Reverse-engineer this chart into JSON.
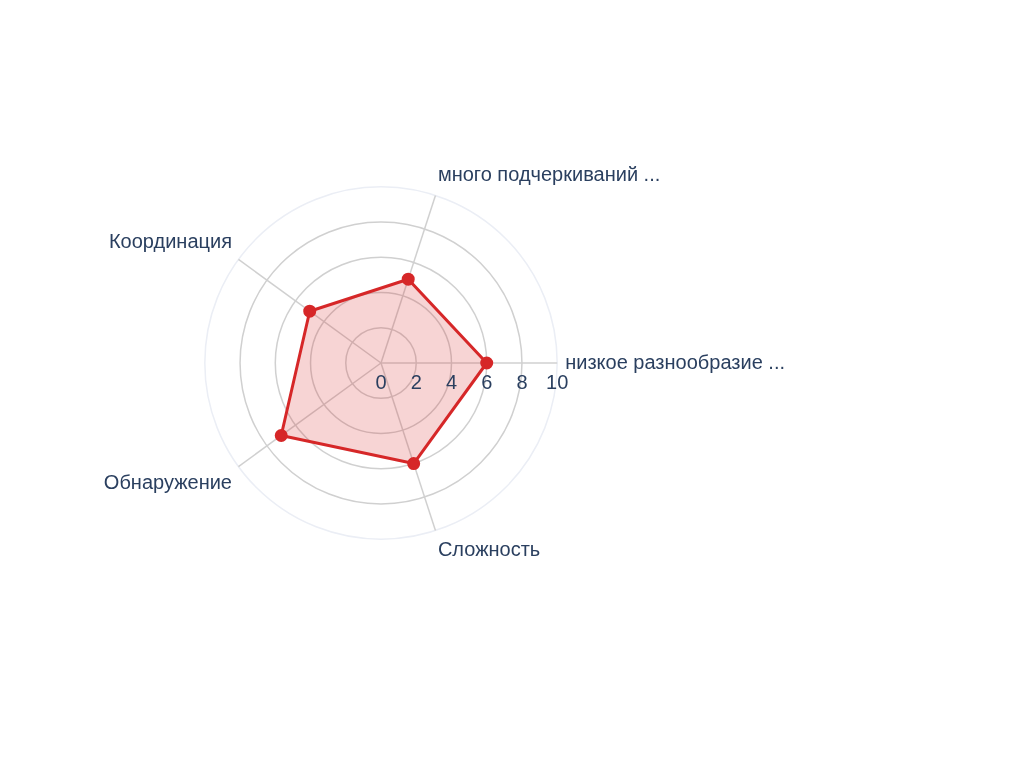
{
  "chart_data": {
    "type": "radar",
    "categories": [
      "много подчеркиваний ...",
      "низкое разнообразие ...",
      "Сложность",
      "Обнаружение",
      "Координация"
    ],
    "series": [
      {
        "color": "#d62728",
        "values": [
          5,
          6,
          6,
          7,
          5
        ]
      }
    ],
    "ylim": [
      0,
      10
    ],
    "yticks": [
      0,
      2,
      4,
      6,
      8,
      10
    ],
    "grid": true,
    "marker": "circle",
    "legend": false
  }
}
